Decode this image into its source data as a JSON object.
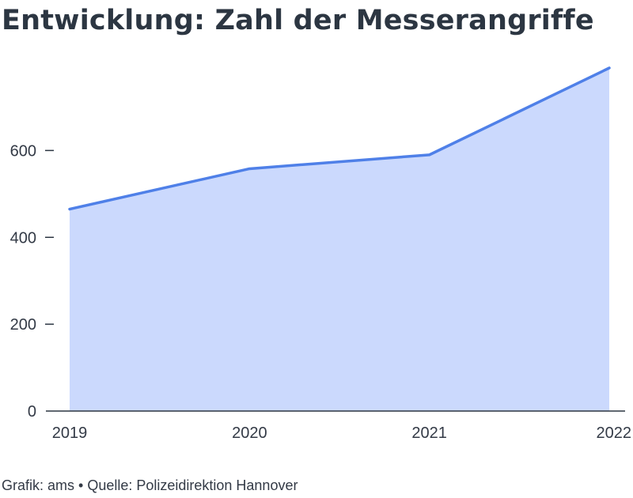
{
  "chart_data": {
    "type": "area",
    "title": "Entwicklung: Zahl der Messerangriffe",
    "x": [
      "2019",
      "2020",
      "2021",
      "2022"
    ],
    "series": [
      {
        "values": [
          465,
          558,
          590,
          790
        ]
      }
    ],
    "ylim": [
      0,
      790
    ],
    "yticks": [
      "0",
      "200",
      "400",
      "600"
    ],
    "ytick_values": [
      0,
      200,
      400,
      600
    ],
    "grid": false,
    "colors": {
      "line": "#4f80e8",
      "fill": "#cbd9fd",
      "axis": "#2c3642"
    }
  },
  "footer": {
    "source": "Grafik: ams • Quelle: Polizeidirektion Hannover"
  }
}
